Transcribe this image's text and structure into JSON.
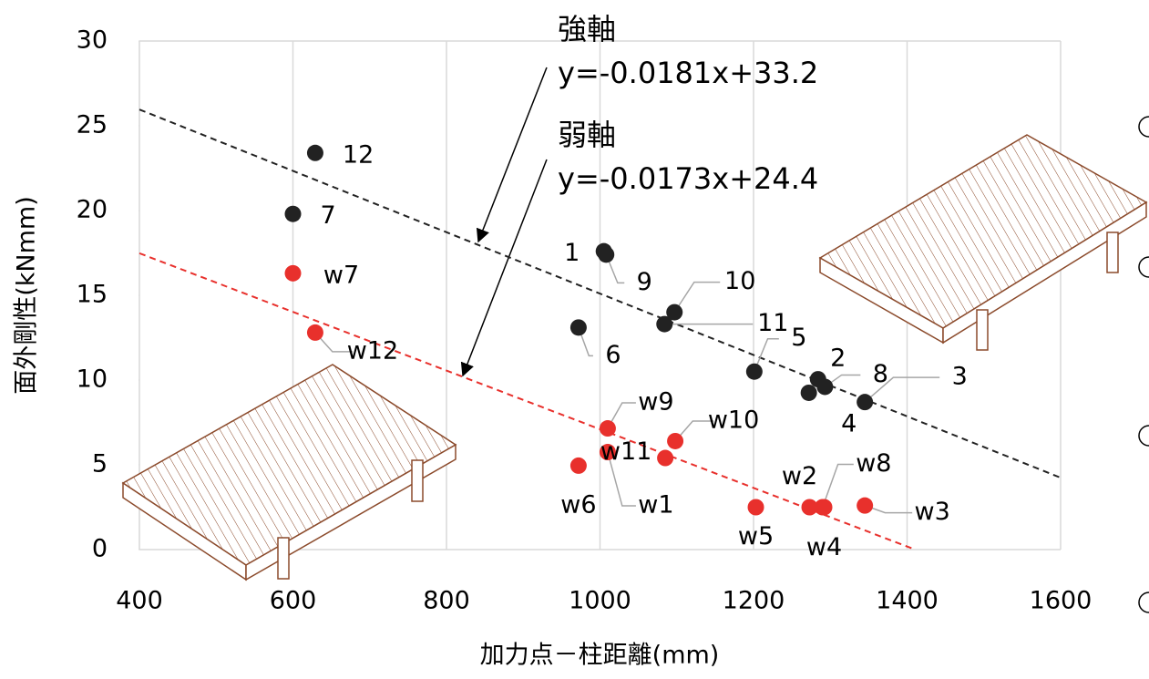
{
  "chart_data": {
    "type": "scatter",
    "xlabel": "加力点－柱距離(mm)",
    "ylabel": "面外剛性(kNmm)",
    "xlim": [
      400,
      1600
    ],
    "ylim": [
      0,
      30
    ],
    "xticks": [
      400,
      600,
      800,
      1000,
      1200,
      1400,
      1600
    ],
    "yticks": [
      0,
      5,
      10,
      15,
      20,
      25,
      30
    ],
    "grid": "x",
    "series": [
      {
        "name": "強軸",
        "color": "#222222",
        "x": [
          629,
          600,
          1005,
          1008,
          1097,
          1084,
          972,
          1201,
          1284,
          1293,
          1272,
          1345
        ],
        "values": [
          23.4,
          19.8,
          17.6,
          17.4,
          14.0,
          13.3,
          13.1,
          10.5,
          10.05,
          9.6,
          9.25,
          8.7
        ],
        "labels": [
          "12",
          "7",
          "1",
          "9",
          "10",
          "11",
          "6",
          "5",
          "2",
          "8",
          "4",
          "3"
        ],
        "trendline": {
          "label": "y=-0.0181x+33.2",
          "slope": -0.0181,
          "intercept": 33.2
        }
      },
      {
        "name": "弱軸",
        "color": "#e8302c",
        "x": [
          600,
          629,
          1010,
          1098,
          1010,
          1085,
          972,
          1203,
          1273,
          1290,
          1292,
          1345
        ],
        "values": [
          16.3,
          12.8,
          7.15,
          6.4,
          5.75,
          5.4,
          4.95,
          2.5,
          2.5,
          2.5,
          2.5,
          2.6
        ],
        "labels": [
          "w7",
          "w12",
          "w9",
          "w10",
          "w1",
          "w11",
          "w6",
          "w5",
          "w2",
          "w8",
          "w4",
          "w3"
        ],
        "trendline": {
          "label": "y=-0.0173x+24.4",
          "slope": -0.0173,
          "intercept": 24.4
        }
      }
    ]
  }
}
